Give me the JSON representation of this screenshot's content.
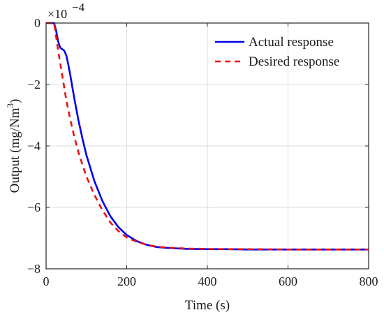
{
  "chart_data": {
    "type": "line",
    "title": "",
    "xlabel": "Time (s)",
    "ylabel_main": "Output (mg/Nm",
    "ylabel_sup": "3",
    "ylabel_end": ")",
    "scale_factor_prefix": "×10",
    "scale_factor_exponent": "−4",
    "xlim": [
      0,
      800
    ],
    "ylim": [
      -8,
      0
    ],
    "xticks": [
      0,
      200,
      400,
      600,
      800
    ],
    "yticks": [
      -8,
      -6,
      -4,
      -2,
      0
    ],
    "xtick_labels": [
      "0",
      "200",
      "400",
      "600",
      "800"
    ],
    "ytick_labels": [
      "−8",
      "−6",
      "−4",
      "−2",
      "0"
    ],
    "grid": true,
    "legend_position": "top-right",
    "series": [
      {
        "name": "Actual response",
        "color": "#0000ee",
        "style": "solid",
        "x": [
          0,
          20,
          25,
          30,
          35,
          40,
          45,
          50,
          55,
          60,
          70,
          80,
          90,
          100,
          120,
          140,
          160,
          180,
          200,
          225,
          250,
          275,
          300,
          350,
          400,
          450,
          500,
          600,
          700,
          800
        ],
        "y": [
          0,
          0,
          -0.25,
          -0.6,
          -0.8,
          -0.85,
          -0.9,
          -1.05,
          -1.35,
          -1.7,
          -2.45,
          -3.15,
          -3.75,
          -4.3,
          -5.15,
          -5.8,
          -6.3,
          -6.65,
          -6.9,
          -7.1,
          -7.22,
          -7.29,
          -7.32,
          -7.35,
          -7.36,
          -7.36,
          -7.37,
          -7.37,
          -7.37,
          -7.37
        ]
      },
      {
        "name": "Desired response",
        "color": "#ee1111",
        "style": "dashed",
        "x": [
          0,
          20,
          25,
          30,
          40,
          50,
          60,
          70,
          80,
          90,
          100,
          120,
          140,
          160,
          180,
          200,
          225,
          250,
          275,
          300,
          350,
          400,
          450,
          500,
          600,
          700,
          800
        ],
        "y": [
          0,
          0,
          -0.45,
          -0.9,
          -1.7,
          -2.5,
          -3.15,
          -3.7,
          -4.2,
          -4.6,
          -5.0,
          -5.6,
          -6.1,
          -6.5,
          -6.78,
          -6.98,
          -7.12,
          -7.22,
          -7.28,
          -7.31,
          -7.34,
          -7.35,
          -7.36,
          -7.36,
          -7.37,
          -7.37,
          -7.37
        ]
      }
    ]
  }
}
